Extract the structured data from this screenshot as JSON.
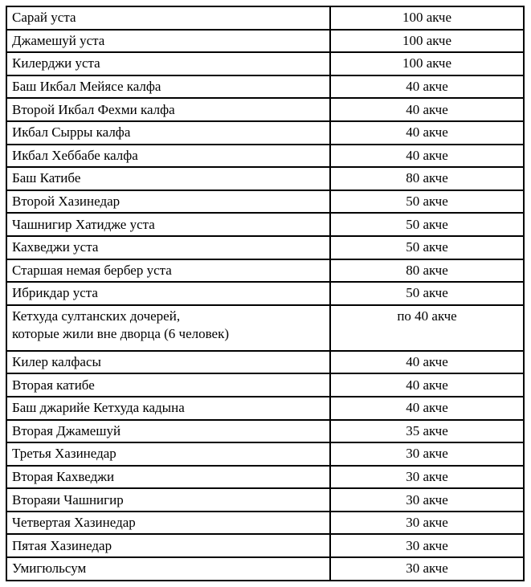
{
  "colors": {
    "background": "#ffffff",
    "border": "#000000",
    "text": "#000000"
  },
  "table": {
    "columns": [
      "position",
      "amount"
    ],
    "currency": "акче",
    "rows": [
      {
        "position": "Сарай уста",
        "amount": "100 акче"
      },
      {
        "position": "Джамешуй уста",
        "amount": "100 акче"
      },
      {
        "position": "Килерджи уста",
        "amount": "100 акче"
      },
      {
        "position": "Баш Икбал Мейясе калфа",
        "amount": "40 акче"
      },
      {
        "position": "Второй Икбал Фехми калфа",
        "amount": "40 акче"
      },
      {
        "position": "Икбал Сырры калфа",
        "amount": "40 акче"
      },
      {
        "position": "Икбал Хеббабе калфа",
        "amount": "40 акче"
      },
      {
        "position": "Баш Катибе",
        "amount": "80 акче"
      },
      {
        "position": "Второй Хазинедар",
        "amount": "50 акче"
      },
      {
        "position": "Чашнигир Хатидже уста",
        "amount": "50 акче"
      },
      {
        "position": "Кахведжи уста",
        "amount": "50 акче"
      },
      {
        "position": "Старшая немая бербер уста",
        "amount": "80 акче"
      },
      {
        "position": "Ибрикдар уста",
        "amount": "50 акче"
      },
      {
        "position": "Кетхуда султанских дочерей,\nкоторые жили вне дворца (6 человек)",
        "amount": "по 40 акче",
        "two_line": true
      },
      {
        "position": "Килер калфасы",
        "amount": "40 акче"
      },
      {
        "position": "Вторая катибе",
        "amount": "40 акче"
      },
      {
        "position": "Баш джарийе Кетхуда кадына",
        "amount": "40 акче"
      },
      {
        "position": "Вторая Джамешуй",
        "amount": "35 акче"
      },
      {
        "position": "Третья Хазинедар",
        "amount": "30 акче"
      },
      {
        "position": "Вторая Кахведжи",
        "amount": "30 акче"
      },
      {
        "position": "Втораяи Чашнигир",
        "amount": "30 акче"
      },
      {
        "position": "Четвертая Хазинедар",
        "amount": "30 акче"
      },
      {
        "position": "Пятая Хазинедар",
        "amount": "30 акче"
      },
      {
        "position": "Умигюльсум",
        "amount": "30 акче"
      }
    ]
  }
}
